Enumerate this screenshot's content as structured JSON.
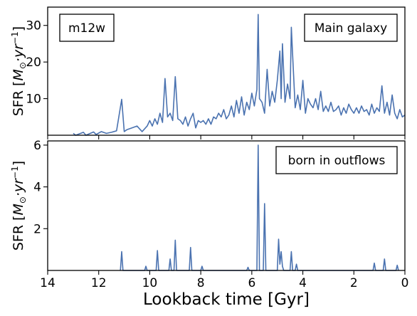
{
  "chart_data": [
    {
      "type": "line",
      "title": "",
      "xlabel": "Lookback time [Gyr]",
      "ylabel_prefix": "SFR [",
      "ylabel_unit": "M",
      "ylabel_dot": "⊙",
      "ylabel_rest": "·yr",
      "ylabel_exp": "−1",
      "ylabel_close": "]",
      "xlim": [
        14,
        0
      ],
      "ylim": [
        0,
        35
      ],
      "x_ticks": [
        14,
        12,
        10,
        8,
        6,
        4,
        2,
        0
      ],
      "x_tick_labels": [],
      "y_ticks": [
        10,
        20,
        30
      ],
      "y_tick_labels": [
        "10",
        "20",
        "30"
      ],
      "tag_left": "m12w",
      "tag_right": "Main galaxy",
      "grid": false,
      "line_color": "#4a72b0",
      "series": [
        {
          "x": [
            13.0,
            12.9,
            12.6,
            12.5,
            12.2,
            12.1,
            11.9,
            11.7,
            11.5,
            11.3,
            11.1,
            11.0,
            10.9,
            10.7,
            10.5,
            10.3,
            10.1,
            10.0,
            9.9,
            9.8,
            9.7,
            9.6,
            9.5,
            9.4,
            9.3,
            9.2,
            9.1,
            9.0,
            8.9,
            8.8,
            8.7,
            8.6,
            8.5,
            8.4,
            8.3,
            8.2,
            8.1,
            8.0,
            7.9,
            7.8,
            7.7,
            7.6,
            7.5,
            7.4,
            7.3,
            7.2,
            7.1,
            7.0,
            6.9,
            6.8,
            6.7,
            6.6,
            6.5,
            6.4,
            6.3,
            6.2,
            6.1,
            6.0,
            5.9,
            5.8,
            5.75,
            5.7,
            5.6,
            5.5,
            5.4,
            5.3,
            5.2,
            5.1,
            5.0,
            4.9,
            4.85,
            4.8,
            4.7,
            4.6,
            4.5,
            4.45,
            4.4,
            4.3,
            4.2,
            4.1,
            4.0,
            3.9,
            3.8,
            3.7,
            3.6,
            3.5,
            3.4,
            3.3,
            3.2,
            3.1,
            3.0,
            2.9,
            2.8,
            2.7,
            2.6,
            2.5,
            2.4,
            2.3,
            2.2,
            2.1,
            2.0,
            1.9,
            1.8,
            1.7,
            1.6,
            1.5,
            1.4,
            1.3,
            1.2,
            1.1,
            1.0,
            0.9,
            0.8,
            0.7,
            0.6,
            0.5,
            0.4,
            0.3,
            0.2,
            0.1,
            0.0
          ],
          "y": [
            0.5,
            0.0,
            0.8,
            0.0,
            0.9,
            0.2,
            1.0,
            0.5,
            0.8,
            1.2,
            9.8,
            1.0,
            1.5,
            2.0,
            2.5,
            1.0,
            2.5,
            4.0,
            2.5,
            4.5,
            3.0,
            6.0,
            3.5,
            15.5,
            5.0,
            6.0,
            4.0,
            16.0,
            4.5,
            4.0,
            3.0,
            5.0,
            2.5,
            4.5,
            6.0,
            2.0,
            4.0,
            3.5,
            4.0,
            3.0,
            4.5,
            3.0,
            5.0,
            4.5,
            6.0,
            5.0,
            7.0,
            4.5,
            5.5,
            8.0,
            5.0,
            9.5,
            6.0,
            10.5,
            5.5,
            9.0,
            7.0,
            11.5,
            8.0,
            12.5,
            33.0,
            10.0,
            9.0,
            6.0,
            18.0,
            8.0,
            12.0,
            9.0,
            15.0,
            23.0,
            10.0,
            25.0,
            9.0,
            14.0,
            10.0,
            29.5,
            22.0,
            7.5,
            11.0,
            7.0,
            15.0,
            6.0,
            10.0,
            8.5,
            7.5,
            10.0,
            7.0,
            12.0,
            6.5,
            8.0,
            6.5,
            9.0,
            6.5,
            7.0,
            8.0,
            5.5,
            7.5,
            6.0,
            8.5,
            7.0,
            6.0,
            7.5,
            6.0,
            8.0,
            6.5,
            7.0,
            5.5,
            8.5,
            6.0,
            7.5,
            6.5,
            13.5,
            6.0,
            9.0,
            5.5,
            11.0,
            6.0,
            4.5,
            7.0,
            5.0,
            5.5
          ]
        }
      ]
    },
    {
      "type": "line",
      "title": "",
      "xlabel": "Lookback time [Gyr]",
      "ylabel_prefix": "SFR [",
      "ylabel_unit": "M",
      "ylabel_dot": "⊙",
      "ylabel_rest": "·yr",
      "ylabel_exp": "−1",
      "ylabel_close": "]",
      "xlim": [
        14,
        0
      ],
      "ylim": [
        0,
        6.2
      ],
      "x_ticks": [
        14,
        12,
        10,
        8,
        6,
        4,
        2,
        0
      ],
      "x_tick_labels": [
        "14",
        "12",
        "10",
        "8",
        "6",
        "4",
        "2",
        "0"
      ],
      "y_ticks": [
        2,
        4,
        6
      ],
      "y_tick_labels": [
        "2",
        "4",
        "6"
      ],
      "tag_right": "born in outflows",
      "grid": false,
      "line_color": "#4a72b0",
      "series": [
        {
          "x": [
            11.15,
            11.1,
            11.05,
            10.2,
            10.15,
            10.1,
            9.75,
            9.7,
            9.65,
            9.25,
            9.2,
            9.15,
            9.05,
            9.0,
            8.95,
            8.45,
            8.4,
            8.35,
            8.0,
            7.95,
            7.9,
            6.2,
            6.15,
            6.1,
            5.8,
            5.75,
            5.7,
            5.55,
            5.5,
            5.45,
            5.0,
            4.95,
            4.9,
            4.85,
            4.8,
            4.75,
            4.5,
            4.45,
            4.4,
            4.3,
            4.25,
            4.2,
            1.25,
            1.2,
            1.15,
            0.85,
            0.8,
            0.75,
            0.35,
            0.3,
            0.25
          ],
          "y": [
            0.0,
            0.9,
            0.0,
            0.0,
            0.2,
            0.0,
            0.0,
            0.95,
            0.0,
            0.0,
            0.55,
            0.0,
            0.0,
            1.45,
            0.0,
            0.0,
            1.1,
            0.0,
            0.0,
            0.2,
            0.0,
            0.0,
            0.15,
            0.0,
            0.0,
            6.0,
            0.0,
            0.0,
            3.2,
            0.0,
            0.0,
            1.5,
            0.3,
            0.9,
            0.2,
            0.0,
            0.0,
            0.9,
            0.0,
            0.0,
            0.3,
            0.0,
            0.0,
            0.35,
            0.0,
            0.0,
            0.55,
            0.0,
            0.0,
            0.25,
            0.0
          ]
        }
      ]
    }
  ]
}
